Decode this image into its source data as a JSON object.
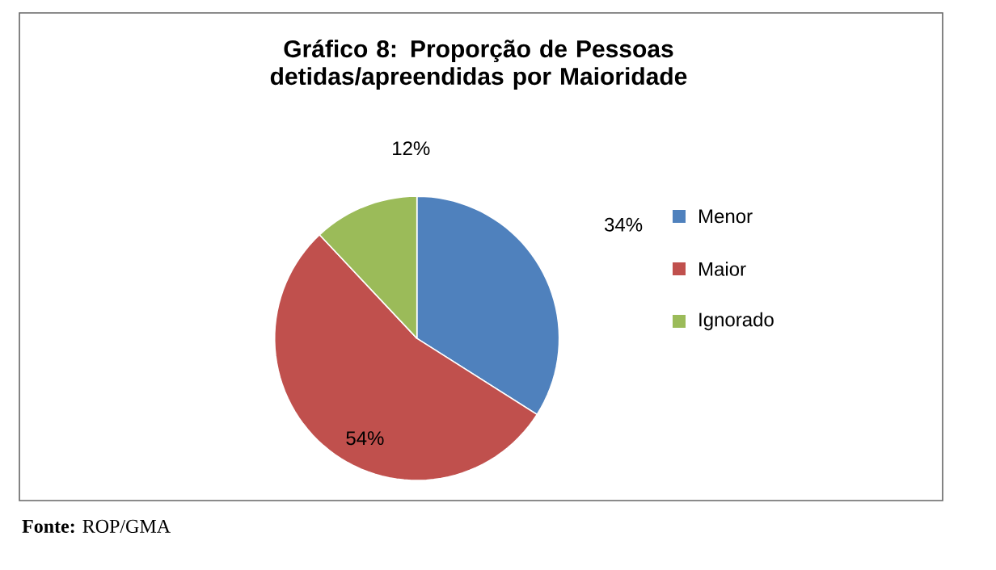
{
  "chart_data": {
    "type": "pie",
    "title": "Gráfico 8: Proporção de Pessoas detidas/apreendidas por Maioridade",
    "categories": [
      "Menor",
      "Maior",
      "Ignorado"
    ],
    "values": [
      34,
      54,
      12
    ],
    "colors": [
      "#4f81bd",
      "#c0504d",
      "#9bbb59"
    ],
    "value_labels": [
      "34%",
      "54%",
      "12%"
    ],
    "legend": "right",
    "annotations": [
      "**Fonte:** ROP/GMA"
    ]
  }
}
